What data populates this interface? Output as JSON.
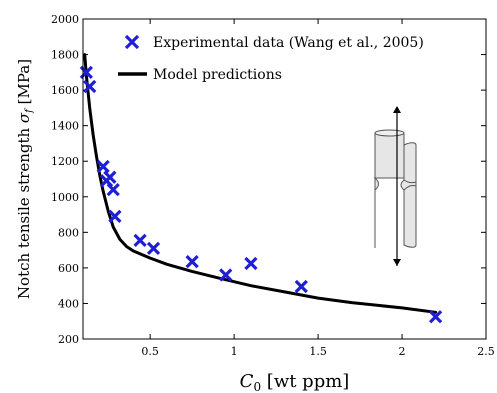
{
  "chart_data": {
    "type": "scatter",
    "xlim": [
      0.1,
      2.5
    ],
    "ylim": [
      200,
      2000
    ],
    "xticks": [
      0.5,
      1,
      1.5,
      2,
      2.5
    ],
    "xtick_labels": [
      "0.5",
      "1",
      "1.5",
      "2",
      "2.5"
    ],
    "yticks": [
      200,
      400,
      600,
      800,
      1000,
      1200,
      1400,
      1600,
      1800,
      2000
    ],
    "ytick_labels": [
      "200",
      "400",
      "600",
      "800",
      "1000",
      "1200",
      "1400",
      "1600",
      "1800",
      "2000"
    ],
    "xlabel": {
      "symbol": "C",
      "subscript": "0",
      "rest": " [wt ppm]"
    },
    "ylabel": {
      "text": "Notch tensile strength ",
      "symbol": "σ",
      "subscript": "f",
      "unit": " [MPa]"
    },
    "legend_position": "top-right",
    "series": [
      {
        "name": "Experimental data (Wang et al., 2005)",
        "kind": "scatter",
        "marker": "x",
        "color": "#1f1fd6",
        "x": [
          0.12,
          0.14,
          0.22,
          0.24,
          0.26,
          0.28,
          0.29,
          0.44,
          0.52,
          0.75,
          0.95,
          1.1,
          1.4,
          2.2
        ],
        "y": [
          1700,
          1620,
          1170,
          1090,
          1110,
          1040,
          890,
          755,
          710,
          635,
          560,
          625,
          495,
          325
        ]
      },
      {
        "name": "Model predictions",
        "kind": "line",
        "color": "#000000",
        "x": [
          0.11,
          0.12,
          0.14,
          0.16,
          0.18,
          0.2,
          0.22,
          0.25,
          0.28,
          0.32,
          0.36,
          0.4,
          0.5,
          0.6,
          0.75,
          0.9,
          1.1,
          1.3,
          1.5,
          1.7,
          2.0,
          2.2
        ],
        "y": [
          1800,
          1680,
          1500,
          1350,
          1230,
          1120,
          1030,
          920,
          830,
          760,
          720,
          695,
          655,
          620,
          580,
          545,
          500,
          465,
          430,
          405,
          375,
          350
        ]
      }
    ]
  },
  "inset": {
    "icon": "notched-tensile-specimen-icon",
    "fill": "#e6e6e6",
    "stroke": "#555555"
  }
}
